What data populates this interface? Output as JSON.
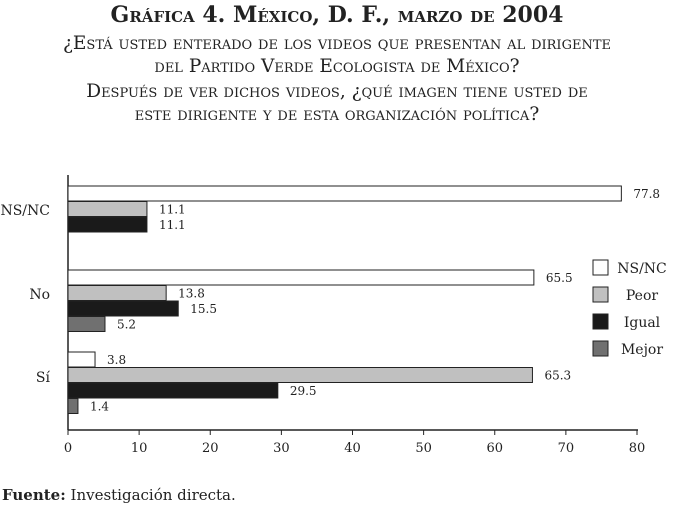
{
  "title": "Gráfica 4. México, D. F., marzo de 2004",
  "subtitle_lines": [
    "¿Está usted enterado de los videos que presentan al dirigente",
    "del Partido Verde Ecologista de México?",
    "Después de ver dichos videos, ¿qué imagen tiene usted de",
    "este dirigente y de esta organización política?"
  ],
  "source_label": "Fuente:",
  "source_text": " Investigación directa.",
  "chart_data": {
    "type": "bar",
    "orientation": "horizontal",
    "categories": [
      "NS/NC",
      "No",
      "Sí"
    ],
    "series": [
      {
        "name": "NS/NC",
        "color": "#ffffff",
        "values": [
          77.8,
          65.5,
          3.8
        ]
      },
      {
        "name": "Peor",
        "color": "#c0c0c0",
        "values": [
          11.1,
          13.8,
          65.3
        ]
      },
      {
        "name": "Igual",
        "color": "#1a1a1a",
        "values": [
          11.1,
          15.5,
          29.5
        ]
      },
      {
        "name": "Mejor",
        "color": "#707070",
        "values": [
          null,
          5.2,
          1.4
        ]
      }
    ],
    "xlim": [
      0,
      80
    ],
    "xticks": [
      0,
      10,
      20,
      30,
      40,
      50,
      60,
      70,
      80
    ],
    "grid": false,
    "legend_position": "right"
  }
}
